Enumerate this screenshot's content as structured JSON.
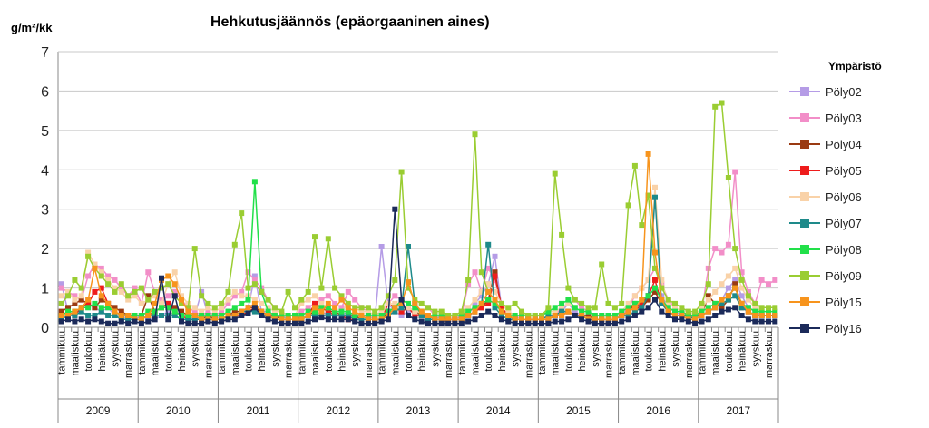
{
  "chart_data": {
    "type": "line",
    "title": "Hehkutusjäännös (epäorgaaninen aines)",
    "ylabel": "g/m²/kk",
    "ylim": [
      0,
      7
    ],
    "yticks": [
      0,
      1,
      2,
      3,
      4,
      5,
      6,
      7
    ],
    "years": [
      "2009",
      "2010",
      "2011",
      "2012",
      "2013",
      "2014",
      "2015",
      "2016",
      "2017"
    ],
    "month_labels": [
      "tammikuu",
      "maaliskuu",
      "toukokuu",
      "heinäkuu",
      "syyskuu",
      "marraskuu"
    ],
    "grid": "horizontal",
    "legend": {
      "title": "Ympäristö",
      "placement": "right"
    },
    "series": [
      {
        "name": "Pöly02",
        "color": "#b59ce6",
        "marker": "square",
        "values": [
          1.1,
          0.4,
          0.3,
          0.5,
          0.6,
          0.5,
          0.4,
          0.5,
          0.3,
          0.3,
          0.2,
          0.2,
          0.3,
          0.2,
          0.2,
          0.3,
          0.4,
          0.3,
          0.2,
          0.2,
          0.3,
          0.9,
          0.3,
          0.2,
          0.3,
          0.4,
          0.3,
          0.3,
          0.5,
          1.3,
          0.4,
          0.4,
          0.3,
          0.3,
          0.2,
          0.2,
          0.2,
          0.3,
          0.3,
          0.4,
          0.3,
          0.3,
          0.3,
          0.4,
          0.3,
          0.3,
          0.3,
          0.2,
          2.05,
          0.6,
          0.4,
          0.3,
          0.4,
          0.4,
          0.3,
          0.3,
          0.2,
          0.3,
          0.2,
          0.2,
          0.2,
          0.3,
          0.6,
          0.8,
          1.1,
          1.8,
          0.5,
          0.3,
          0.2,
          0.2,
          0.2,
          0.2,
          0.2,
          0.3,
          0.3,
          0.4,
          0.6,
          0.4,
          0.3,
          0.3,
          0.2,
          0.2,
          0.2,
          0.2,
          0.3,
          0.4,
          0.5,
          0.6,
          0.8,
          1.0,
          0.8,
          0.5,
          0.4,
          0.3,
          0.3,
          0.3,
          0.3,
          0.4,
          0.5,
          0.7,
          1.0,
          1.2,
          0.8,
          0.5,
          0.4,
          0.3,
          0.3,
          0.3
        ]
      },
      {
        "name": "Pöly03",
        "color": "#f28ec8",
        "marker": "square",
        "values": [
          1.0,
          0.9,
          0.8,
          0.7,
          1.3,
          1.6,
          1.5,
          1.3,
          1.2,
          1.0,
          0.8,
          1.0,
          0.6,
          1.4,
          0.9,
          0.7,
          0.8,
          0.9,
          0.7,
          0.5,
          0.4,
          0.3,
          0.4,
          0.3,
          0.4,
          0.6,
          0.8,
          0.9,
          1.4,
          1.2,
          1.0,
          0.7,
          0.5,
          0.4,
          0.3,
          0.3,
          0.4,
          0.5,
          0.6,
          0.7,
          0.8,
          0.6,
          0.5,
          0.9,
          0.7,
          0.5,
          0.4,
          0.3,
          0.4,
          0.6,
          0.8,
          0.7,
          0.6,
          0.5,
          0.4,
          0.5,
          0.3,
          0.3,
          0.2,
          0.2,
          0.3,
          1.1,
          1.4,
          0.9,
          1.5,
          1.2,
          0.6,
          0.4,
          0.3,
          0.2,
          0.2,
          0.2,
          0.2,
          0.3,
          0.3,
          0.5,
          0.6,
          0.7,
          0.5,
          0.4,
          0.3,
          0.3,
          0.3,
          0.3,
          0.3,
          0.5,
          0.8,
          1.0,
          1.2,
          1.5,
          1.1,
          0.7,
          0.5,
          0.4,
          0.3,
          0.3,
          0.4,
          1.5,
          2.0,
          1.9,
          2.1,
          3.95,
          1.4,
          0.9,
          0.6,
          1.2,
          1.1,
          1.2
        ]
      },
      {
        "name": "Pöly04",
        "color": "#9a3a12",
        "marker": "square",
        "values": [
          0.4,
          0.5,
          0.6,
          0.7,
          0.6,
          0.5,
          0.7,
          0.6,
          0.5,
          0.4,
          0.3,
          0.3,
          0.3,
          0.8,
          0.4,
          0.5,
          0.6,
          0.5,
          0.4,
          0.3,
          0.3,
          0.2,
          0.3,
          0.2,
          0.2,
          0.3,
          0.4,
          0.4,
          0.5,
          0.5,
          0.4,
          0.3,
          0.3,
          0.2,
          0.2,
          0.2,
          0.2,
          0.3,
          0.4,
          0.5,
          0.4,
          0.4,
          0.3,
          0.3,
          0.3,
          0.2,
          0.2,
          0.2,
          0.2,
          0.4,
          0.5,
          0.4,
          0.5,
          0.4,
          0.3,
          0.3,
          0.2,
          0.2,
          0.2,
          0.2,
          0.2,
          0.3,
          0.4,
          0.5,
          0.7,
          1.4,
          0.5,
          0.3,
          0.2,
          0.2,
          0.2,
          0.2,
          0.2,
          0.2,
          0.3,
          0.4,
          0.4,
          0.3,
          0.3,
          0.3,
          0.2,
          0.2,
          0.2,
          0.2,
          0.3,
          0.4,
          0.6,
          0.5,
          0.7,
          0.9,
          0.6,
          0.4,
          0.3,
          0.3,
          0.3,
          0.3,
          0.3,
          0.8,
          0.6,
          0.5,
          0.7,
          1.1,
          0.5,
          0.4,
          0.3,
          0.3,
          0.3,
          0.3
        ]
      },
      {
        "name": "Pöly05",
        "color": "#ee1c1c",
        "marker": "square",
        "values": [
          0.3,
          0.4,
          0.3,
          0.5,
          0.6,
          0.9,
          1.0,
          0.6,
          0.4,
          0.3,
          0.3,
          0.2,
          0.2,
          0.3,
          0.4,
          0.5,
          0.6,
          0.4,
          0.3,
          0.2,
          0.2,
          0.2,
          0.2,
          0.2,
          0.2,
          0.3,
          0.3,
          0.3,
          0.4,
          0.5,
          0.3,
          0.3,
          0.2,
          0.2,
          0.2,
          0.2,
          0.2,
          0.3,
          0.6,
          0.5,
          0.4,
          0.3,
          0.3,
          0.2,
          0.2,
          0.2,
          0.2,
          0.2,
          0.2,
          0.6,
          0.5,
          0.4,
          0.5,
          0.3,
          0.3,
          0.2,
          0.2,
          0.2,
          0.2,
          0.2,
          0.2,
          0.3,
          0.4,
          0.5,
          0.6,
          1.3,
          0.5,
          0.3,
          0.2,
          0.2,
          0.2,
          0.2,
          0.2,
          0.2,
          0.3,
          0.3,
          0.4,
          0.3,
          0.3,
          0.2,
          0.2,
          0.2,
          0.2,
          0.2,
          0.3,
          0.3,
          0.4,
          0.6,
          0.8,
          1.2,
          0.6,
          0.4,
          0.3,
          0.3,
          0.3,
          0.2,
          0.3,
          0.4,
          0.5,
          0.7,
          0.8,
          1.0,
          0.6,
          0.4,
          0.3,
          0.3,
          0.3,
          0.3
        ]
      },
      {
        "name": "Pöly06",
        "color": "#f9d2a8",
        "marker": "square",
        "values": [
          0.8,
          0.9,
          0.7,
          0.8,
          1.9,
          1.6,
          1.4,
          1.2,
          1.0,
          0.9,
          0.7,
          0.8,
          0.6,
          0.7,
          0.8,
          0.6,
          1.1,
          1.4,
          0.8,
          0.6,
          0.5,
          0.4,
          0.5,
          0.4,
          0.5,
          0.7,
          0.9,
          0.8,
          0.8,
          0.7,
          0.6,
          0.5,
          0.4,
          0.4,
          0.3,
          0.3,
          0.6,
          0.7,
          0.8,
          0.6,
          0.5,
          0.4,
          0.4,
          0.6,
          0.5,
          0.4,
          0.4,
          0.3,
          0.4,
          0.6,
          0.6,
          0.5,
          0.5,
          0.4,
          0.4,
          0.3,
          0.3,
          0.3,
          0.3,
          0.3,
          0.4,
          0.5,
          0.7,
          0.9,
          1.1,
          0.9,
          0.6,
          0.4,
          0.3,
          0.3,
          0.3,
          0.3,
          0.3,
          0.4,
          0.4,
          0.5,
          0.6,
          0.5,
          0.4,
          0.4,
          0.3,
          0.3,
          0.3,
          0.3,
          0.4,
          0.6,
          0.8,
          1.0,
          1.2,
          3.55,
          1.2,
          0.6,
          0.5,
          0.4,
          0.4,
          0.3,
          0.5,
          0.7,
          0.9,
          1.1,
          1.3,
          1.5,
          1.0,
          0.7,
          0.5,
          0.4,
          0.4,
          0.4
        ]
      },
      {
        "name": "Pöly07",
        "color": "#1e8a8a",
        "marker": "square",
        "values": [
          0.2,
          0.3,
          0.3,
          0.4,
          0.3,
          0.3,
          0.4,
          0.3,
          0.3,
          0.2,
          0.2,
          0.2,
          0.2,
          0.3,
          0.3,
          0.3,
          0.3,
          0.3,
          0.2,
          0.2,
          0.2,
          0.2,
          0.2,
          0.2,
          0.2,
          0.3,
          0.3,
          0.4,
          0.4,
          0.4,
          0.3,
          0.3,
          0.2,
          0.2,
          0.2,
          0.2,
          0.2,
          0.3,
          0.3,
          0.3,
          0.3,
          0.3,
          0.3,
          0.3,
          0.2,
          0.2,
          0.2,
          0.2,
          0.2,
          0.3,
          0.4,
          0.5,
          2.05,
          0.6,
          0.3,
          0.2,
          0.2,
          0.2,
          0.2,
          0.2,
          0.2,
          0.3,
          0.4,
          0.6,
          2.1,
          0.5,
          0.3,
          0.2,
          0.2,
          0.2,
          0.2,
          0.2,
          0.2,
          0.3,
          0.3,
          0.4,
          0.4,
          0.3,
          0.3,
          0.2,
          0.2,
          0.2,
          0.2,
          0.2,
          0.3,
          0.3,
          0.4,
          0.5,
          0.8,
          3.3,
          0.6,
          0.4,
          0.3,
          0.3,
          0.3,
          0.2,
          0.3,
          0.4,
          0.5,
          0.6,
          0.7,
          0.8,
          0.5,
          0.4,
          0.3,
          0.3,
          0.3,
          0.3
        ]
      },
      {
        "name": "Pöly08",
        "color": "#22e04a",
        "marker": "square",
        "values": [
          0.3,
          0.4,
          0.4,
          0.5,
          0.5,
          0.6,
          0.5,
          0.5,
          0.4,
          0.3,
          0.3,
          0.3,
          0.3,
          0.4,
          0.4,
          0.5,
          0.5,
          0.4,
          0.3,
          0.3,
          0.3,
          0.3,
          0.3,
          0.3,
          0.3,
          0.4,
          0.5,
          0.6,
          0.7,
          3.7,
          0.9,
          0.4,
          0.3,
          0.3,
          0.3,
          0.3,
          0.3,
          0.4,
          0.4,
          0.5,
          0.5,
          0.4,
          0.4,
          0.4,
          0.3,
          0.3,
          0.3,
          0.3,
          0.3,
          0.4,
          0.5,
          0.7,
          0.6,
          0.5,
          0.4,
          0.3,
          0.3,
          0.3,
          0.3,
          0.3,
          0.3,
          0.4,
          0.5,
          0.6,
          0.7,
          0.6,
          0.4,
          0.3,
          0.3,
          0.3,
          0.3,
          0.3,
          0.3,
          0.4,
          0.5,
          0.6,
          0.7,
          0.5,
          0.4,
          0.4,
          0.3,
          0.3,
          0.3,
          0.3,
          0.4,
          0.5,
          0.6,
          0.7,
          0.8,
          1.0,
          0.7,
          0.5,
          0.4,
          0.4,
          0.3,
          0.3,
          0.4,
          0.5,
          0.6,
          0.7,
          0.8,
          1.0,
          0.6,
          0.5,
          0.4,
          0.4,
          0.4,
          0.4
        ]
      },
      {
        "name": "Pöly09",
        "color": "#9acd32",
        "marker": "square",
        "values": [
          0.6,
          0.8,
          1.2,
          1.0,
          1.8,
          1.5,
          1.3,
          1.1,
          0.9,
          1.1,
          0.8,
          0.9,
          1.0,
          0.7,
          0.9,
          1.0,
          1.1,
          0.8,
          0.6,
          0.5,
          2.0,
          0.8,
          0.6,
          0.5,
          0.6,
          0.9,
          2.1,
          2.9,
          1.0,
          1.1,
          0.9,
          0.7,
          0.5,
          0.4,
          0.9,
          0.5,
          0.7,
          0.9,
          2.3,
          1.0,
          2.25,
          1.0,
          0.8,
          0.6,
          0.5,
          0.5,
          0.5,
          0.4,
          0.5,
          0.8,
          1.2,
          3.95,
          1.0,
          0.7,
          0.6,
          0.5,
          0.4,
          0.4,
          0.3,
          0.3,
          0.4,
          1.2,
          4.9,
          1.4,
          0.9,
          0.7,
          0.6,
          0.5,
          0.6,
          0.4,
          0.3,
          0.3,
          0.3,
          0.5,
          3.9,
          2.35,
          1.0,
          0.7,
          0.6,
          0.5,
          0.5,
          1.6,
          0.6,
          0.5,
          0.6,
          3.1,
          4.1,
          2.6,
          3.35,
          1.5,
          1.0,
          0.7,
          0.6,
          0.5,
          0.4,
          0.4,
          0.6,
          1.1,
          5.6,
          5.7,
          3.8,
          2.0,
          1.2,
          0.8,
          0.6,
          0.5,
          0.5,
          0.5
        ]
      },
      {
        "name": "Pöly15",
        "color": "#f7941d",
        "marker": "square",
        "values": [
          0.3,
          0.3,
          0.4,
          0.5,
          0.7,
          1.5,
          0.8,
          0.6,
          0.4,
          0.3,
          0.3,
          0.2,
          0.2,
          0.3,
          0.6,
          1.2,
          1.3,
          1.1,
          0.7,
          0.4,
          0.3,
          0.2,
          0.2,
          0.2,
          0.2,
          0.3,
          0.3,
          0.4,
          0.5,
          0.6,
          0.4,
          0.3,
          0.2,
          0.2,
          0.2,
          0.2,
          0.2,
          0.3,
          0.5,
          0.4,
          0.6,
          0.5,
          0.7,
          0.5,
          0.4,
          0.3,
          0.2,
          0.2,
          0.2,
          0.3,
          0.5,
          0.6,
          1.15,
          0.6,
          0.4,
          0.3,
          0.2,
          0.2,
          0.2,
          0.2,
          0.2,
          0.3,
          0.4,
          0.6,
          0.9,
          0.7,
          0.4,
          0.3,
          0.2,
          0.2,
          0.2,
          0.2,
          0.2,
          0.2,
          0.3,
          0.3,
          0.4,
          0.3,
          0.3,
          0.2,
          0.2,
          0.2,
          0.2,
          0.2,
          0.3,
          0.4,
          0.5,
          0.7,
          4.4,
          1.9,
          0.7,
          0.4,
          0.3,
          0.3,
          0.2,
          0.2,
          0.3,
          0.4,
          0.5,
          0.7,
          0.8,
          1.0,
          0.6,
          0.4,
          0.3,
          0.3,
          0.3,
          0.3
        ]
      },
      {
        "name": "Pöly16",
        "color": "#1b2a5a",
        "marker": "square",
        "values": [
          0.15,
          0.2,
          0.15,
          0.2,
          0.15,
          0.2,
          0.15,
          0.1,
          0.1,
          0.15,
          0.1,
          0.15,
          0.1,
          0.15,
          0.2,
          1.25,
          0.2,
          0.8,
          0.15,
          0.1,
          0.1,
          0.1,
          0.15,
          0.1,
          0.15,
          0.2,
          0.2,
          0.3,
          0.35,
          0.5,
          0.3,
          0.2,
          0.15,
          0.1,
          0.1,
          0.1,
          0.1,
          0.15,
          0.2,
          0.25,
          0.2,
          0.2,
          0.2,
          0.2,
          0.15,
          0.1,
          0.1,
          0.1,
          0.15,
          0.2,
          3.0,
          0.7,
          0.3,
          0.2,
          0.15,
          0.1,
          0.1,
          0.1,
          0.1,
          0.1,
          0.1,
          0.15,
          0.2,
          0.3,
          0.4,
          0.3,
          0.2,
          0.15,
          0.1,
          0.1,
          0.1,
          0.1,
          0.1,
          0.1,
          0.15,
          0.15,
          0.2,
          0.3,
          0.2,
          0.15,
          0.1,
          0.1,
          0.1,
          0.1,
          0.15,
          0.2,
          0.3,
          0.4,
          0.5,
          0.7,
          0.4,
          0.3,
          0.2,
          0.2,
          0.15,
          0.1,
          0.15,
          0.2,
          0.3,
          0.4,
          0.45,
          0.5,
          0.3,
          0.2,
          0.15,
          0.15,
          0.15,
          0.15
        ]
      }
    ]
  }
}
